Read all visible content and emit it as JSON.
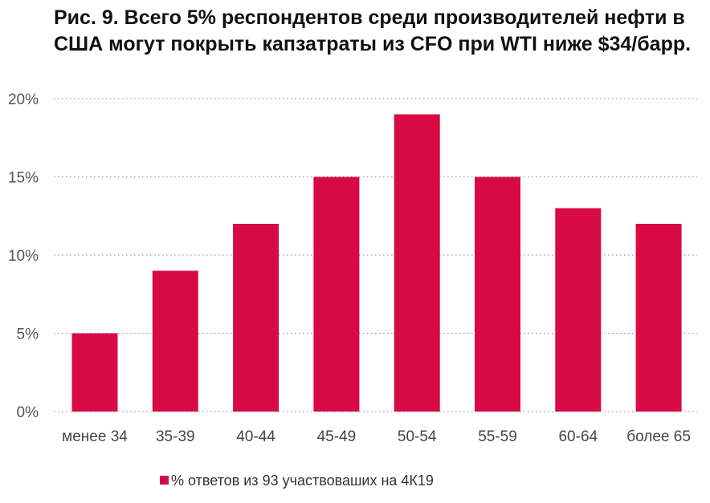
{
  "chart_data": {
    "type": "bar",
    "title": "Рис. 9. Всего 5% респондентов среди производителей нефти в США могут покрыть капзатраты из CFO при WTI ниже $34/барр.",
    "categories": [
      "менее 34",
      "35-39",
      "40-44",
      "45-49",
      "50-54",
      "55-59",
      "60-64",
      "более 65"
    ],
    "series": [
      {
        "name": "% ответов из 93 участвоваших на 4К19",
        "values": [
          5,
          9,
          12,
          15,
          19,
          15,
          13,
          12
        ],
        "color": "#d80a45"
      }
    ],
    "ylim": [
      0,
      20
    ],
    "yticks": [
      0,
      5,
      10,
      15,
      20
    ],
    "ytick_labels": [
      "0%",
      "5%",
      "10%",
      "15%",
      "20%"
    ],
    "grid": true,
    "legend_position": "bottom",
    "xlabel": "",
    "ylabel": ""
  }
}
